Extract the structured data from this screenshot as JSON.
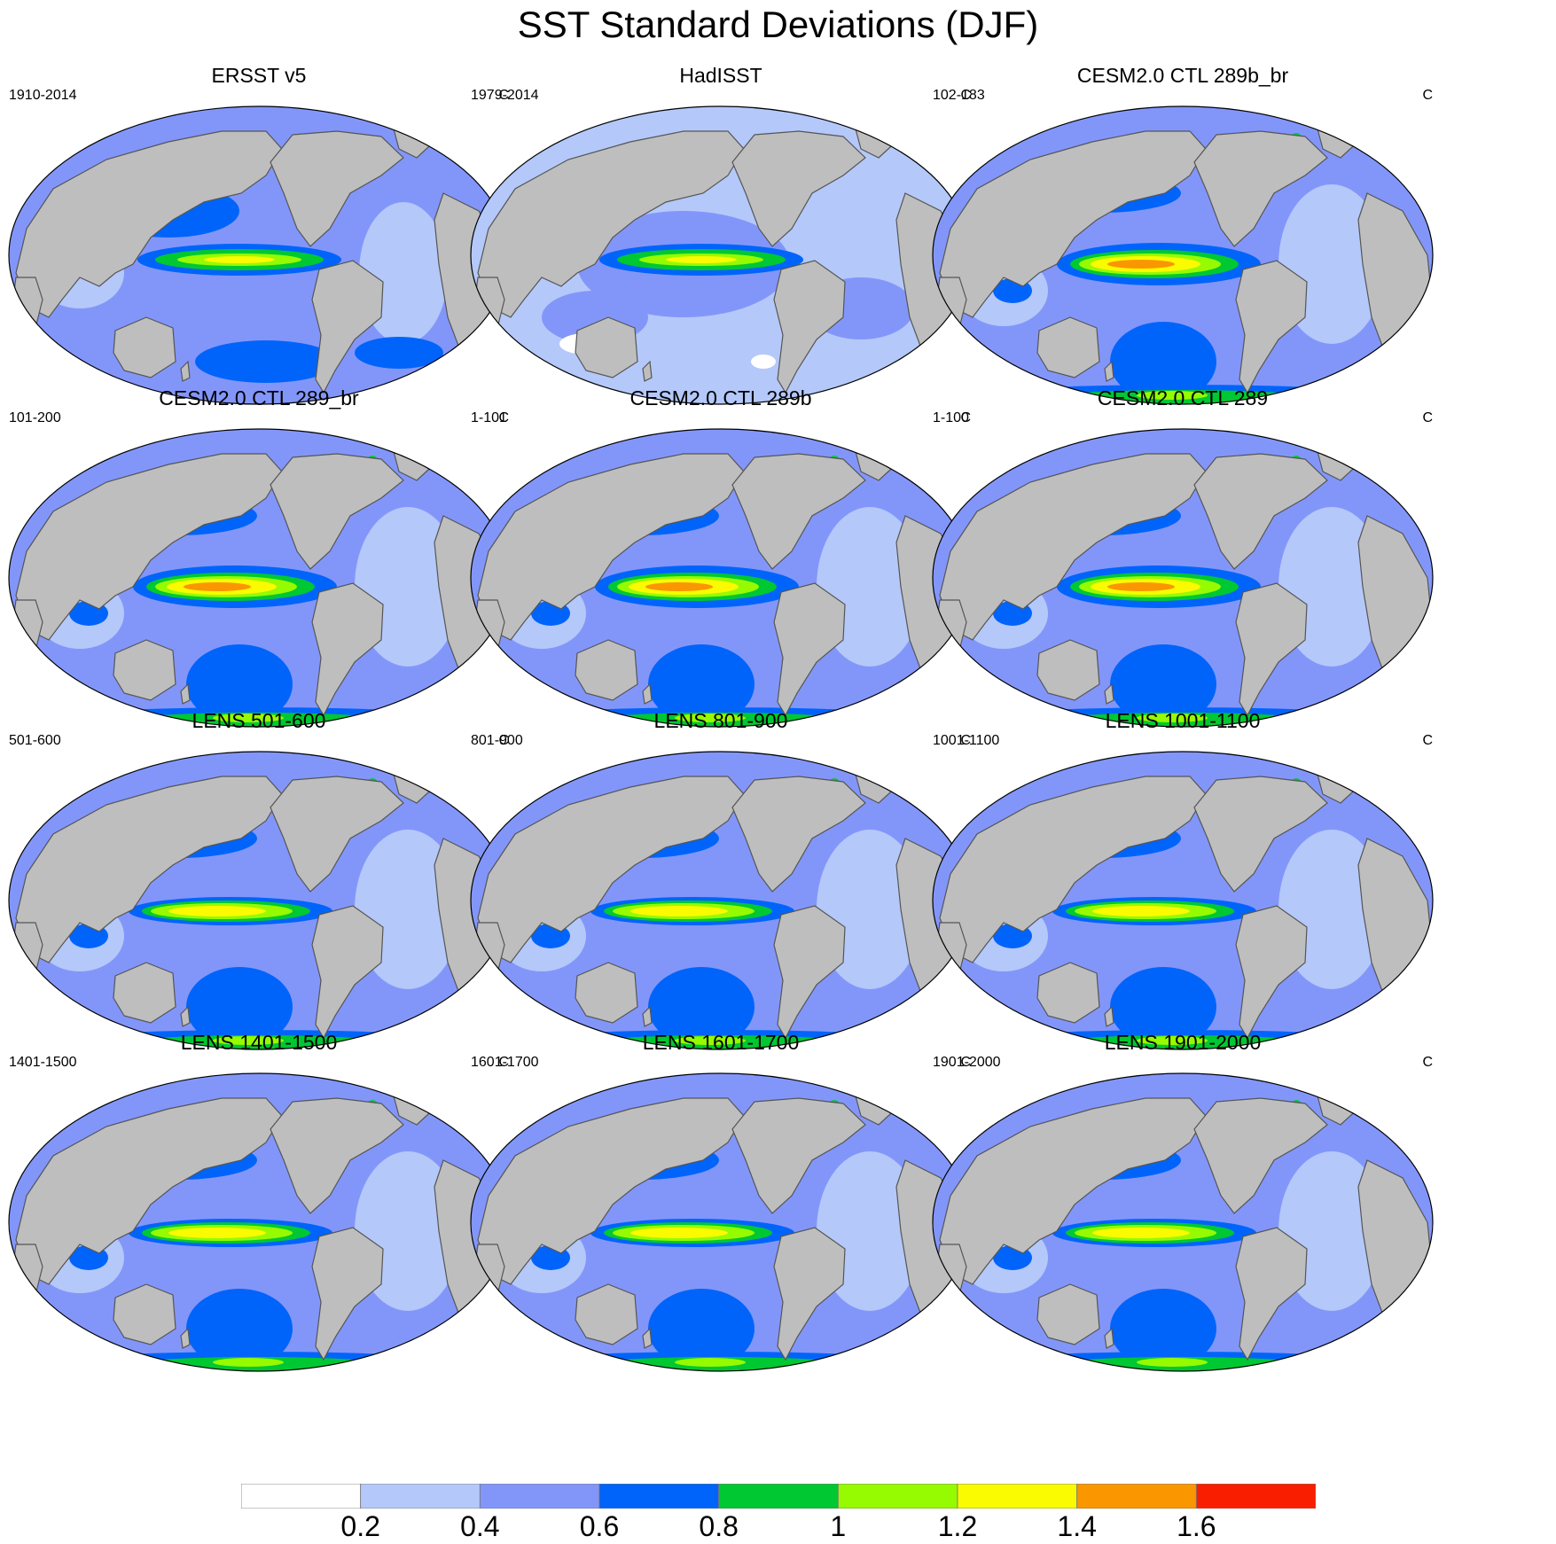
{
  "figure": {
    "title": "SST Standard Deviations (DJF)"
  },
  "panels": [
    {
      "title": "ERSST v5",
      "period": "1910-2014",
      "units": "C",
      "style": "obs1"
    },
    {
      "title": "HadISST",
      "period": "1979-2014",
      "units": "C",
      "style": "obs2"
    },
    {
      "title": "CESM2.0 CTL 289b_br",
      "period": "102-183",
      "units": "C",
      "style": "strong"
    },
    {
      "title": "CESM2.0 CTL 289_br",
      "period": "101-200",
      "units": "C",
      "style": "strong"
    },
    {
      "title": "CESM2.0 CTL 289b",
      "period": "1-101",
      "units": "C",
      "style": "strong"
    },
    {
      "title": "CESM2.0 CTL 289",
      "period": "1-100",
      "units": "C",
      "style": "strong"
    },
    {
      "title": "LENS 501-600",
      "period": "501-600",
      "units": "C",
      "style": "lens"
    },
    {
      "title": "LENS 801-900",
      "period": "801-900",
      "units": "C",
      "style": "lens"
    },
    {
      "title": "LENS 1001-1100",
      "period": "1001-1100",
      "units": "C",
      "style": "lens"
    },
    {
      "title": "LENS 1401-1500",
      "period": "1401-1500",
      "units": "C",
      "style": "lens"
    },
    {
      "title": "LENS 1601-1700",
      "period": "1601-1700",
      "units": "C",
      "style": "lens"
    },
    {
      "title": "LENS 1901-2000",
      "period": "1901-2000",
      "units": "C",
      "style": "lens"
    }
  ],
  "colorbar": {
    "colors": [
      "#ffffff",
      "#b4c8fa",
      "#8296fa",
      "#0064fa",
      "#00c832",
      "#96fa00",
      "#fafa00",
      "#fa9600",
      "#fa1e00"
    ],
    "labels": [
      "0.2",
      "0.4",
      "0.6",
      "0.8",
      "1",
      "1.2",
      "1.4",
      "1.6"
    ]
  },
  "map_colors": {
    "land": "#bebebe",
    "coast": "#555555",
    "border": "#000000"
  }
}
